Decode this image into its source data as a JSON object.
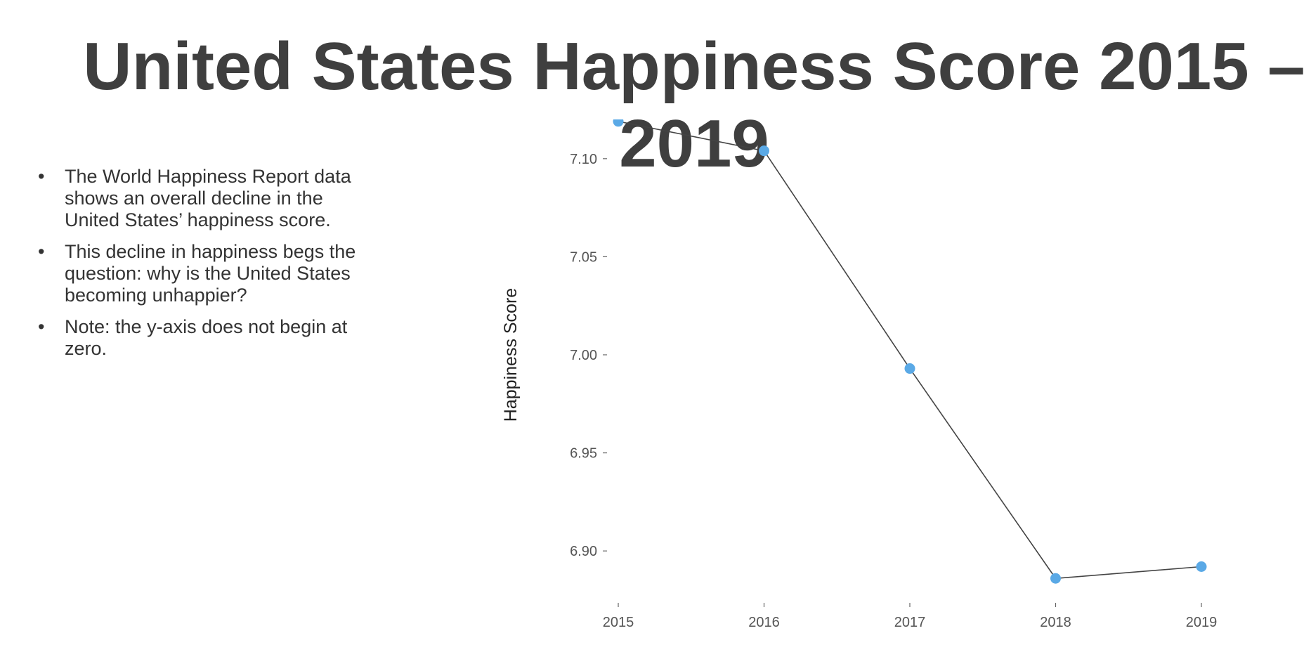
{
  "slide": {
    "title": "United States Happiness Score 2015 – 2019",
    "bullet_glyph": "•",
    "bullets": [
      "The World Happiness Report data shows an overall decline in the United States’ happiness score.",
      "This decline in happiness begs the question: why is the United States becoming unhappier?",
      "Note: the y-axis does not begin at zero."
    ]
  },
  "chart_data": {
    "type": "line",
    "x": [
      "2015",
      "2016",
      "2017",
      "2018",
      "2019"
    ],
    "series": [
      {
        "values": [
          7.119,
          7.104,
          6.993,
          6.886,
          6.892
        ]
      }
    ],
    "ylabel": "Happiness Score",
    "xlabel": "",
    "ylim": [
      6.88,
      7.12
    ],
    "yticks": [
      "6.90",
      "6.95",
      "7.00",
      "7.05",
      "7.10"
    ],
    "grid": false,
    "legend": "none",
    "colors": {
      "line": "#444444",
      "point": "#5aa9e6"
    }
  }
}
